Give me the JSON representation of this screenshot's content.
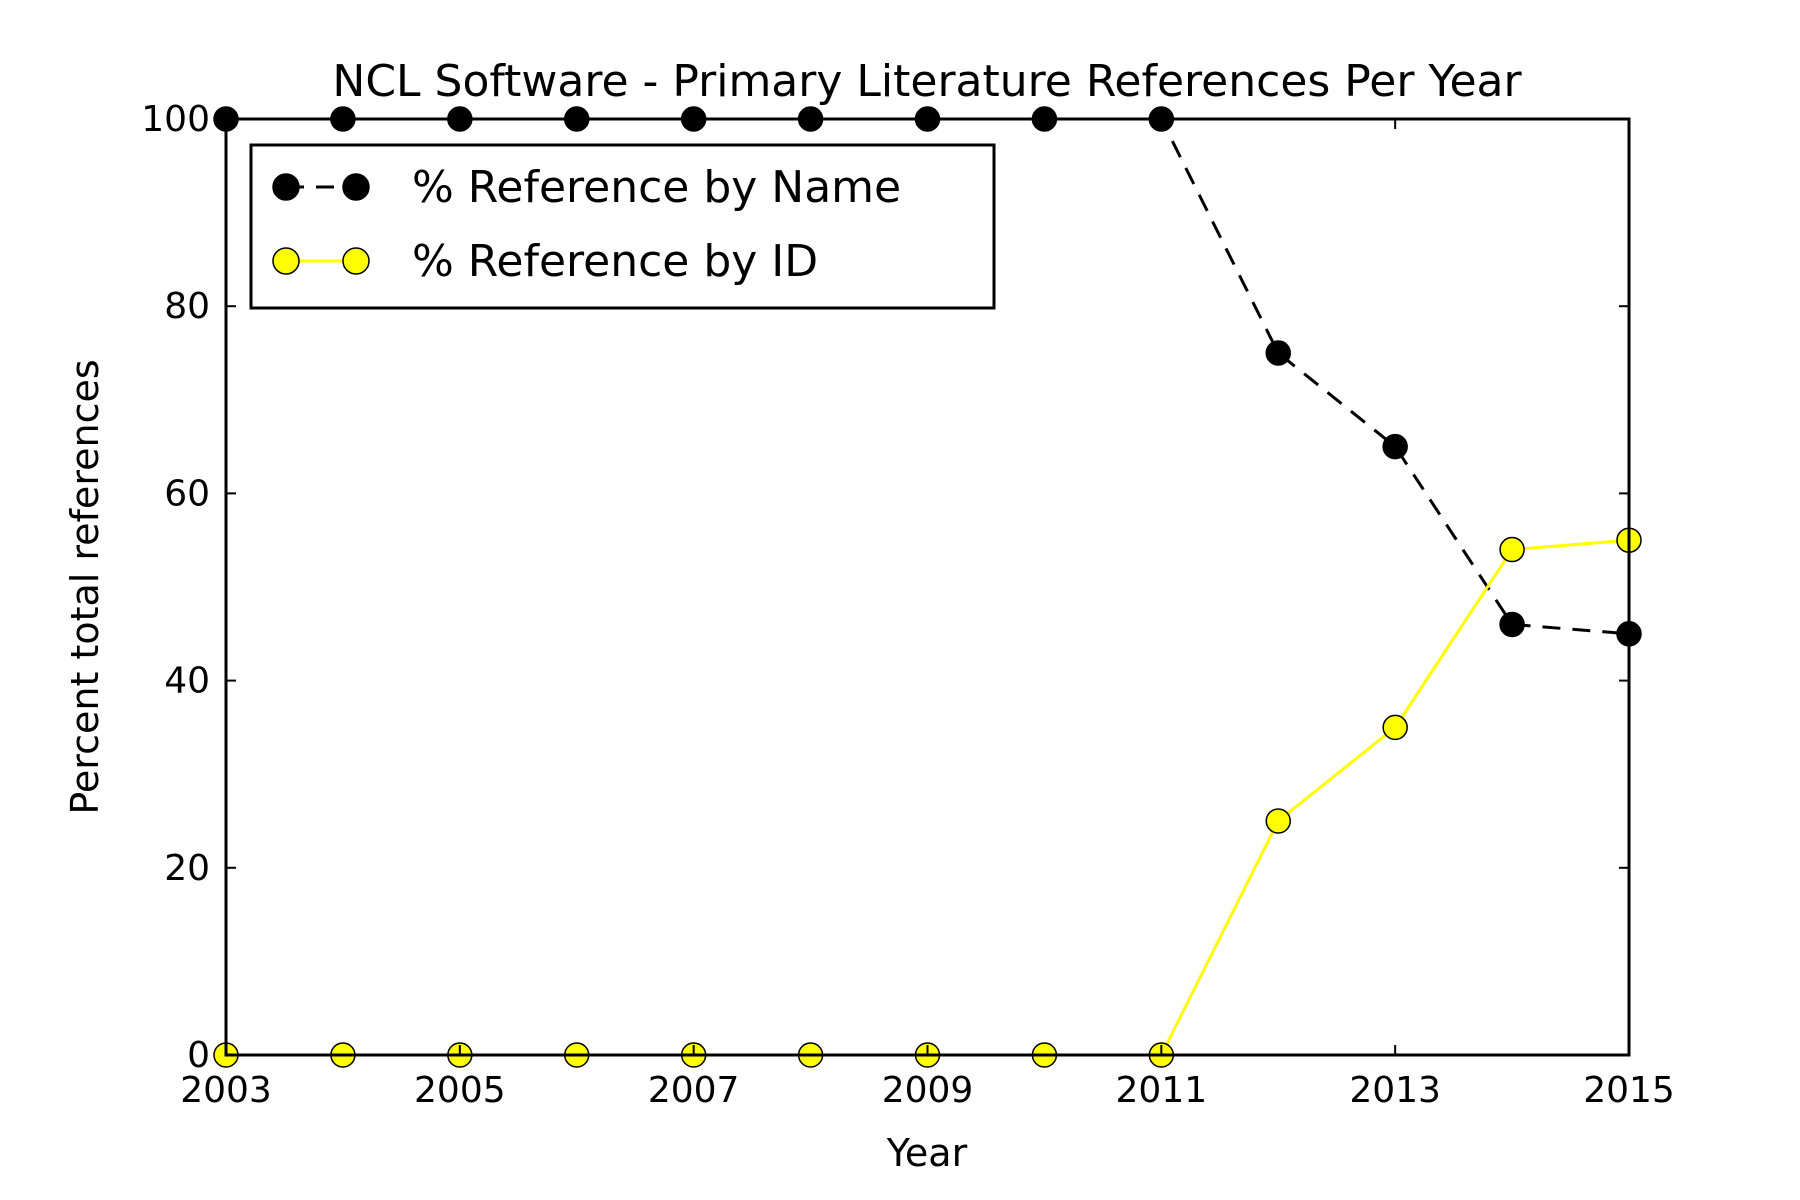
{
  "chart_data": {
    "type": "line",
    "title": "NCL Software - Primary Literature References Per Year",
    "xlabel": "Year",
    "ylabel": "Percent total references",
    "xlim": [
      2003,
      2015
    ],
    "ylim": [
      0,
      100
    ],
    "xticks": [
      2003,
      2005,
      2007,
      2009,
      2011,
      2013,
      2015
    ],
    "xtick_labels": [
      "2003",
      "2005",
      "2007",
      "2009",
      "2011",
      "2013",
      "2015"
    ],
    "yticks": [
      0,
      20,
      40,
      60,
      80,
      100
    ],
    "ytick_labels": [
      "0",
      "20",
      "40",
      "60",
      "80",
      "100"
    ],
    "grid": false,
    "legend_position": "top-left",
    "x": [
      2003,
      2004,
      2005,
      2006,
      2007,
      2008,
      2009,
      2010,
      2011,
      2012,
      2013,
      2014,
      2015
    ],
    "series": [
      {
        "name": "% Reference by Name",
        "values": [
          100,
          100,
          100,
          100,
          100,
          100,
          100,
          100,
          100,
          75,
          65,
          46,
          45
        ],
        "color": "#000000",
        "marker_fill": "#000000",
        "line_style": "dashed"
      },
      {
        "name": "% Reference by ID",
        "values": [
          0,
          0,
          0,
          0,
          0,
          0,
          0,
          0,
          0,
          25,
          35,
          54,
          55
        ],
        "color": "#ffff00",
        "marker_fill": "#ffff00",
        "line_style": "solid"
      }
    ]
  }
}
